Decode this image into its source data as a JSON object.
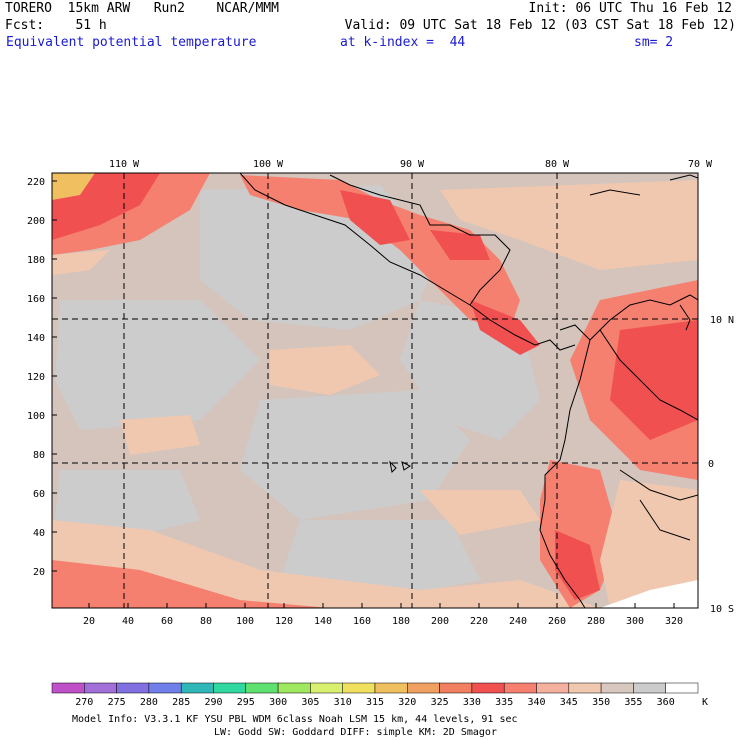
{
  "header": {
    "line1_left": "TORERO  15km ARW   Run2    NCAR/MMM",
    "line1_right": "Init: 06 UTC Thu 16 Feb 12",
    "line2_left": "Fcst:    51 h",
    "line2_right": "Valid: 09 UTC Sat 18 Feb 12 (03 CST Sat 18 Feb 12)",
    "field": "Equivalent potential temperature",
    "level": "at k-index =  44",
    "smoothing": "sm= 2"
  },
  "map": {
    "lon_labels": [
      "110 W",
      "100 W",
      "90 W",
      "80 W",
      "70 W"
    ],
    "lat_labels": [
      "10 N",
      "0",
      "10 S"
    ],
    "y_ticks": [
      "220",
      "200",
      "180",
      "160",
      "140",
      "120",
      "100",
      "80",
      "60",
      "40",
      "20"
    ],
    "x_ticks": [
      "20",
      "40",
      "60",
      "80",
      "100",
      "120",
      "140",
      "160",
      "180",
      "200",
      "220",
      "240",
      "260",
      "280",
      "300",
      "320"
    ]
  },
  "colorbar": {
    "unit": "K",
    "labels": [
      "270",
      "275",
      "280",
      "285",
      "290",
      "295",
      "300",
      "305",
      "310",
      "315",
      "320",
      "325",
      "330",
      "335",
      "340",
      "345",
      "350",
      "355",
      "360"
    ],
    "colors": [
      "#c050c8",
      "#a070d8",
      "#8070e0",
      "#7080e8",
      "#30b8b8",
      "#30d8a0",
      "#60e070",
      "#a0e860",
      "#d8f070",
      "#f0e060",
      "#f0c060",
      "#f0a060",
      "#f08060",
      "#f05050",
      "#f58070",
      "#f5b0a0",
      "#f0c8b0",
      "#d8c8c0",
      "#cccccc",
      "#ffffff"
    ]
  },
  "footer": {
    "line1": "Model Info: V3.3.1   KF     YSU PBL  WDM 6class  Noah LSM  15 km,   44 levels,   91 sec",
    "line2": "LW: Godd SW: Goddard DIFF: simple KM: 2D Smagor"
  }
}
